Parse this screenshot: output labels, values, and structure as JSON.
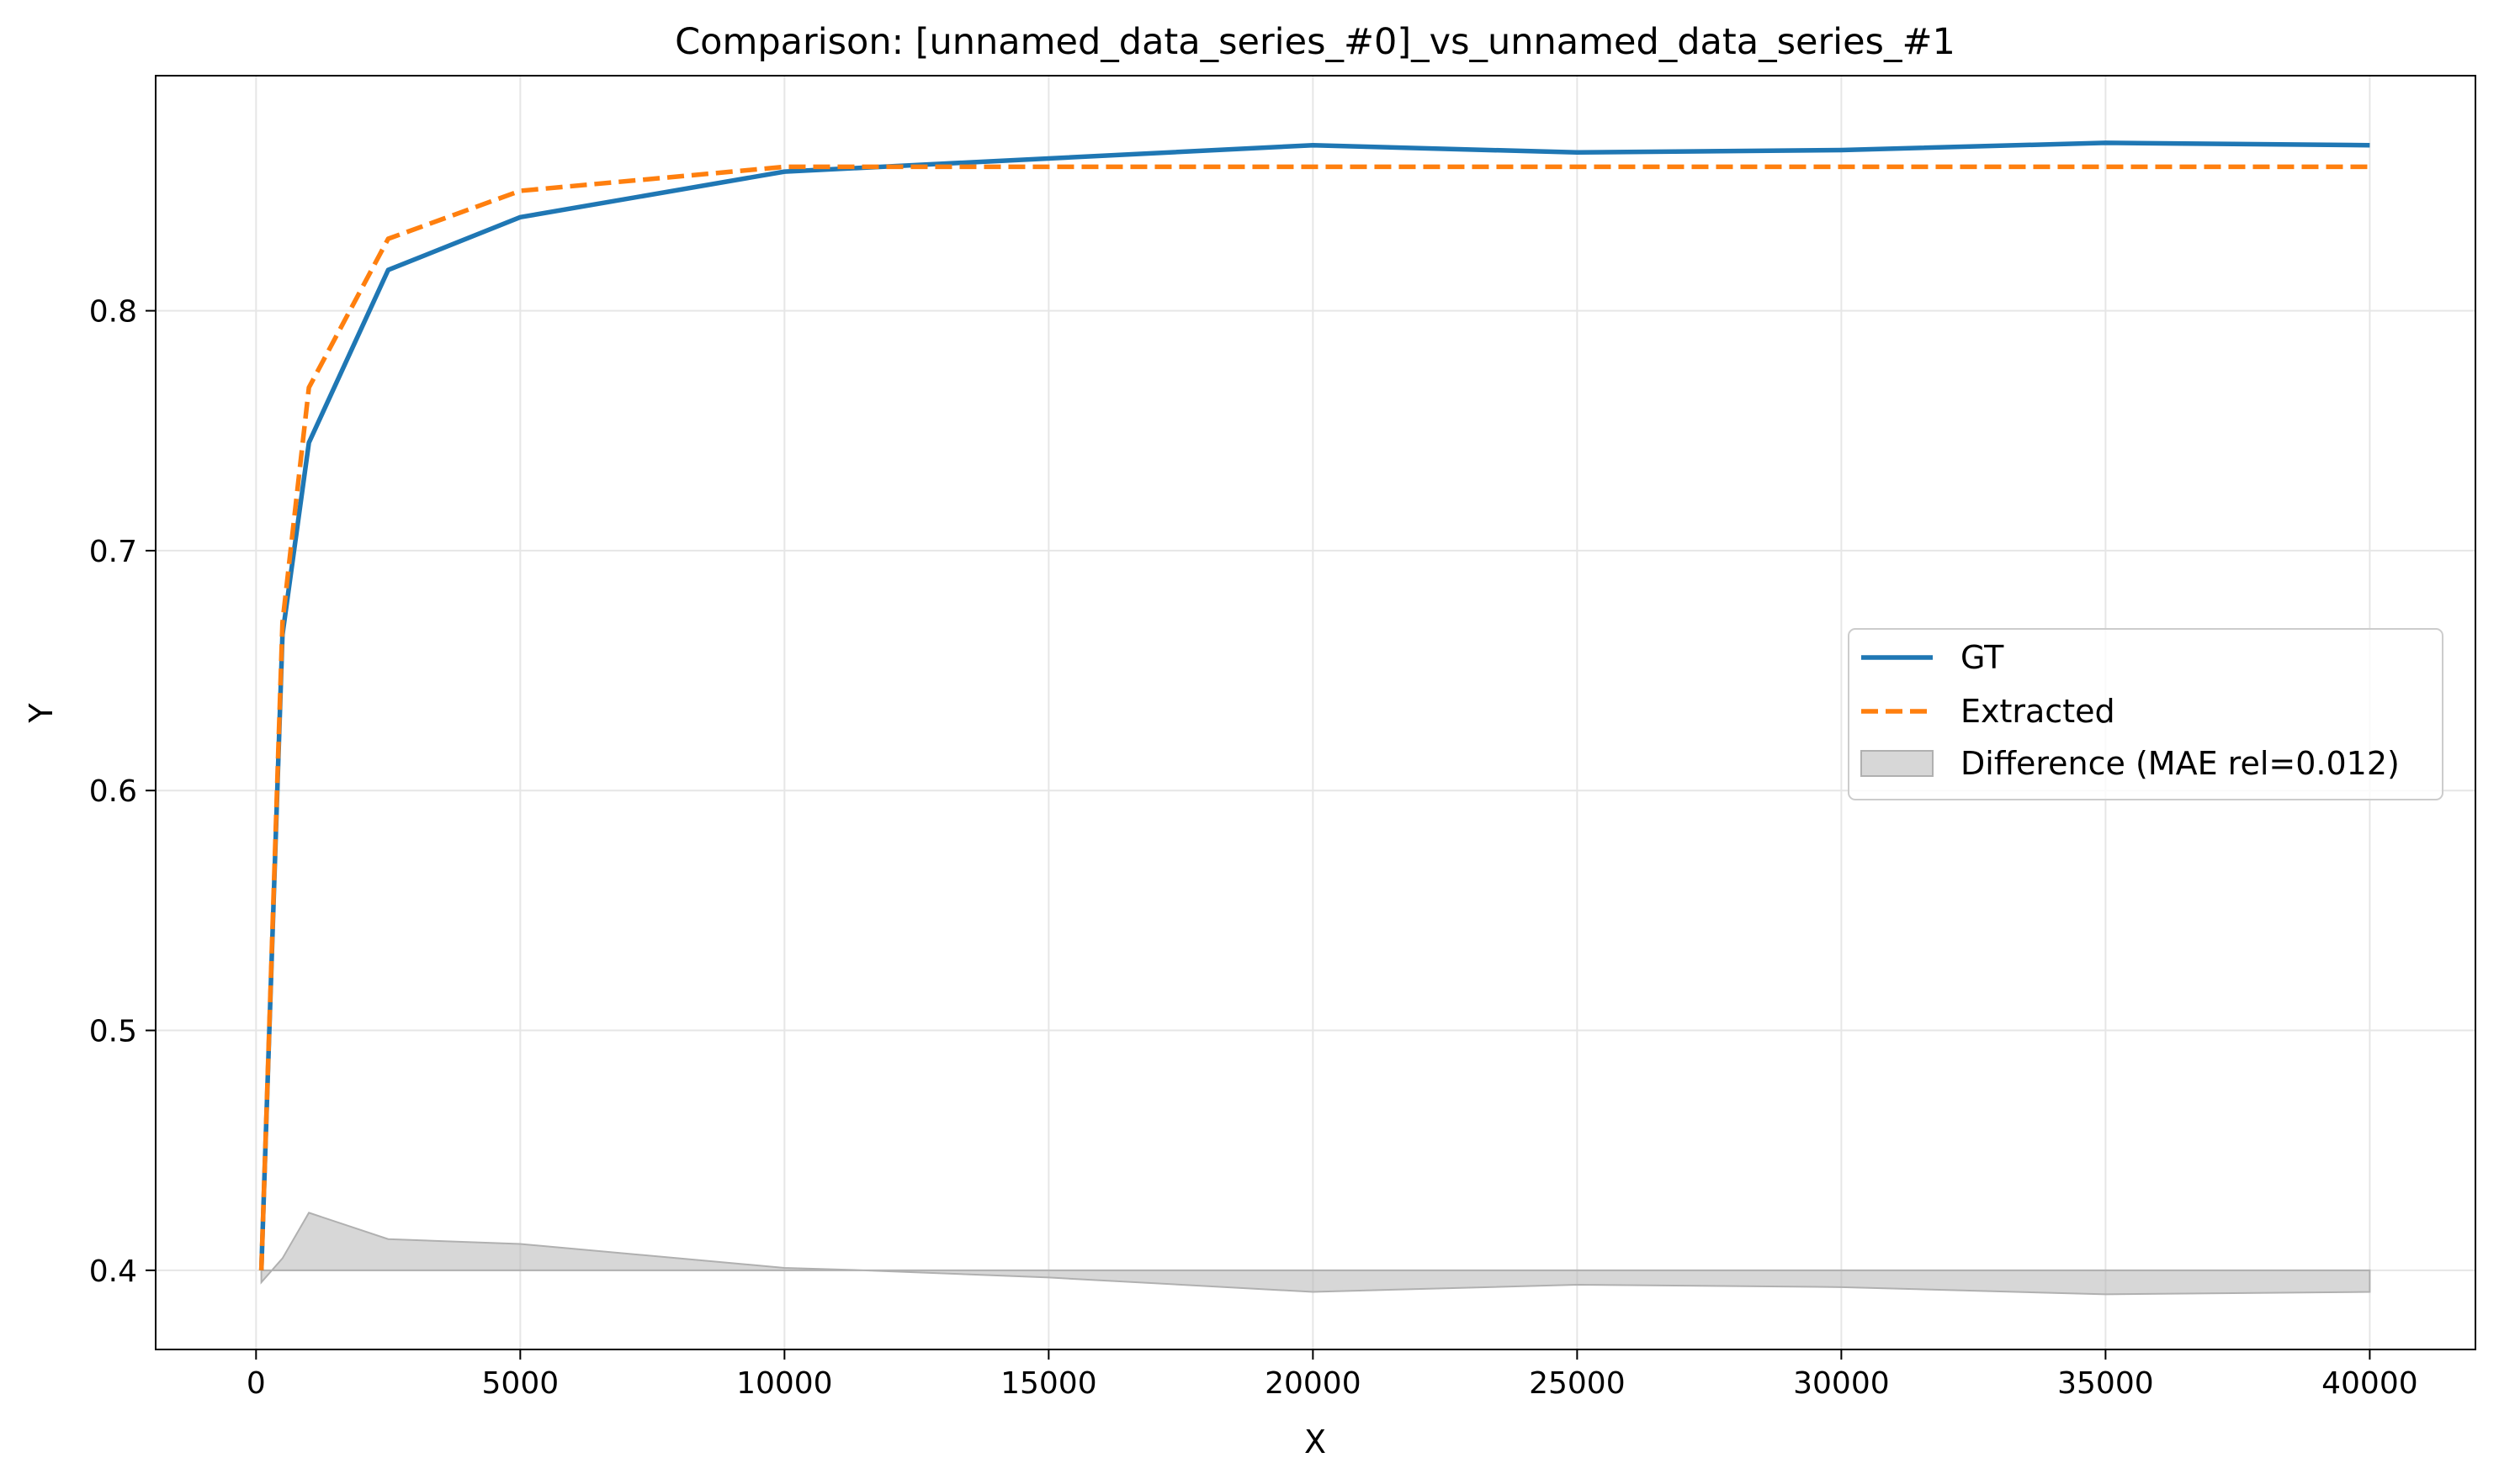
{
  "chart_data": {
    "type": "line",
    "title": "Comparison: [unnamed_data_series_#0]_vs_unnamed_data_series_#1",
    "xlabel": "X",
    "ylabel": "Y",
    "xlim": [
      -1900,
      42000
    ],
    "ylim": [
      0.367,
      0.898
    ],
    "xticks": [
      0,
      5000,
      10000,
      15000,
      20000,
      25000,
      30000,
      35000,
      40000
    ],
    "yticks": [
      0.4,
      0.5,
      0.6,
      0.7,
      0.8
    ],
    "grid": true,
    "legend_position": "center-right",
    "x": [
      100,
      500,
      1000,
      2500,
      5000,
      10000,
      20000,
      25000,
      30000,
      35000,
      40000
    ],
    "series": [
      {
        "name": "GT",
        "color": "#1f77b4",
        "style": "solid",
        "values": [
          0.4,
          0.665,
          0.745,
          0.817,
          0.839,
          0.858,
          0.869,
          0.866,
          0.867,
          0.87,
          0.869
        ]
      },
      {
        "name": "Extracted",
        "color": "#ff7f0e",
        "style": "dashed",
        "values": [
          0.4,
          0.67,
          0.768,
          0.83,
          0.85,
          0.86,
          0.86,
          0.86,
          0.86,
          0.86,
          0.86
        ]
      }
    ],
    "difference": {
      "name": "Difference (MAE rel=0.012)",
      "color": "#b0b0b0",
      "baseline": 0.4,
      "x": [
        100,
        500,
        1000,
        2500,
        5000,
        10000,
        11500,
        15000,
        20000,
        25000,
        30000,
        35000,
        40000
      ],
      "values": [
        0.395,
        0.405,
        0.424,
        0.413,
        0.411,
        0.401,
        0.4,
        0.397,
        0.391,
        0.394,
        0.393,
        0.39,
        0.391
      ]
    }
  }
}
